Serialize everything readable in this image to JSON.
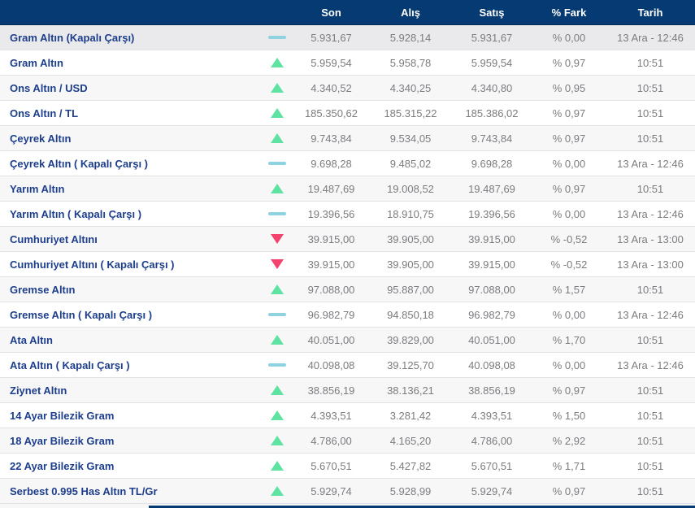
{
  "table": {
    "header": {
      "name": "",
      "icon": "",
      "son": "Son",
      "alis": "Alış",
      "satis": "Satış",
      "fark": "% Fark",
      "tarih": "Tarih"
    },
    "rows": [
      {
        "name": "Gram Altın (Kapalı Çarşı)",
        "trend": "flat",
        "son": "5.931,67",
        "alis": "5.928,14",
        "satis": "5.931,67",
        "fark": "% 0,00",
        "tarih": "13 Ara - 12:46",
        "highlighted": true
      },
      {
        "name": "Gram Altın",
        "trend": "up",
        "son": "5.959,54",
        "alis": "5.958,78",
        "satis": "5.959,54",
        "fark": "% 0,97",
        "tarih": "10:51",
        "highlighted": false
      },
      {
        "name": "Ons Altın / USD",
        "trend": "up",
        "son": "4.340,52",
        "alis": "4.340,25",
        "satis": "4.340,80",
        "fark": "% 0,95",
        "tarih": "10:51",
        "highlighted": false
      },
      {
        "name": "Ons Altın / TL",
        "trend": "up",
        "son": "185.350,62",
        "alis": "185.315,22",
        "satis": "185.386,02",
        "fark": "% 0,97",
        "tarih": "10:51",
        "highlighted": false
      },
      {
        "name": "Çeyrek Altın",
        "trend": "up",
        "son": "9.743,84",
        "alis": "9.534,05",
        "satis": "9.743,84",
        "fark": "% 0,97",
        "tarih": "10:51",
        "highlighted": false
      },
      {
        "name": "Çeyrek Altın ( Kapalı Çarşı )",
        "trend": "flat",
        "son": "9.698,28",
        "alis": "9.485,02",
        "satis": "9.698,28",
        "fark": "% 0,00",
        "tarih": "13 Ara - 12:46",
        "highlighted": false
      },
      {
        "name": "Yarım Altın",
        "trend": "up",
        "son": "19.487,69",
        "alis": "19.008,52",
        "satis": "19.487,69",
        "fark": "% 0,97",
        "tarih": "10:51",
        "highlighted": false
      },
      {
        "name": "Yarım Altın ( Kapalı Çarşı )",
        "trend": "flat",
        "son": "19.396,56",
        "alis": "18.910,75",
        "satis": "19.396,56",
        "fark": "% 0,00",
        "tarih": "13 Ara - 12:46",
        "highlighted": false
      },
      {
        "name": "Cumhuriyet Altını",
        "trend": "down",
        "son": "39.915,00",
        "alis": "39.905,00",
        "satis": "39.915,00",
        "fark": "% -0,52",
        "tarih": "13 Ara - 13:00",
        "highlighted": false
      },
      {
        "name": "Cumhuriyet Altını ( Kapalı Çarşı )",
        "trend": "down",
        "son": "39.915,00",
        "alis": "39.905,00",
        "satis": "39.915,00",
        "fark": "% -0,52",
        "tarih": "13 Ara - 13:00",
        "highlighted": false
      },
      {
        "name": "Gremse Altın",
        "trend": "up",
        "son": "97.088,00",
        "alis": "95.887,00",
        "satis": "97.088,00",
        "fark": "% 1,57",
        "tarih": "10:51",
        "highlighted": false
      },
      {
        "name": "Gremse Altın ( Kapalı Çarşı )",
        "trend": "flat",
        "son": "96.982,79",
        "alis": "94.850,18",
        "satis": "96.982,79",
        "fark": "% 0,00",
        "tarih": "13 Ara - 12:46",
        "highlighted": false
      },
      {
        "name": "Ata Altın",
        "trend": "up",
        "son": "40.051,00",
        "alis": "39.829,00",
        "satis": "40.051,00",
        "fark": "% 1,70",
        "tarih": "10:51",
        "highlighted": false
      },
      {
        "name": "Ata Altın ( Kapalı Çarşı )",
        "trend": "flat",
        "son": "40.098,08",
        "alis": "39.125,70",
        "satis": "40.098,08",
        "fark": "% 0,00",
        "tarih": "13 Ara - 12:46",
        "highlighted": false
      },
      {
        "name": "Ziynet Altın",
        "trend": "up",
        "son": "38.856,19",
        "alis": "38.136,21",
        "satis": "38.856,19",
        "fark": "% 0,97",
        "tarih": "10:51",
        "highlighted": false
      },
      {
        "name": "14 Ayar Bilezik Gram",
        "trend": "up",
        "son": "4.393,51",
        "alis": "3.281,42",
        "satis": "4.393,51",
        "fark": "% 1,50",
        "tarih": "10:51",
        "highlighted": false
      },
      {
        "name": "18 Ayar Bilezik Gram",
        "trend": "up",
        "son": "4.786,00",
        "alis": "4.165,20",
        "satis": "4.786,00",
        "fark": "% 2,92",
        "tarih": "10:51",
        "highlighted": false
      },
      {
        "name": "22 Ayar Bilezik Gram",
        "trend": "up",
        "son": "5.670,51",
        "alis": "5.427,82",
        "satis": "5.670,51",
        "fark": "% 1,71",
        "tarih": "10:51",
        "highlighted": false
      },
      {
        "name": "Serbest 0.995 Has Altın TL/Gr",
        "trend": "up",
        "son": "5.929,74",
        "alis": "5.928,99",
        "satis": "5.929,74",
        "fark": "% 0,97",
        "tarih": "10:51",
        "highlighted": false
      }
    ]
  },
  "colors": {
    "header_bg": "#053a72",
    "name_color": "#1d3e8c",
    "value_color": "#7c7c80",
    "up": "#5ee3a2",
    "down": "#f4426e",
    "flat": "#8fd3e0",
    "row_alt": "#f7f7f8",
    "row_highlight": "#eaeaec",
    "divider": "#e2e2e4"
  },
  "icons": {
    "up": "trend-up-triangle-icon",
    "down": "trend-down-triangle-icon",
    "flat": "trend-flat-dash-icon"
  }
}
